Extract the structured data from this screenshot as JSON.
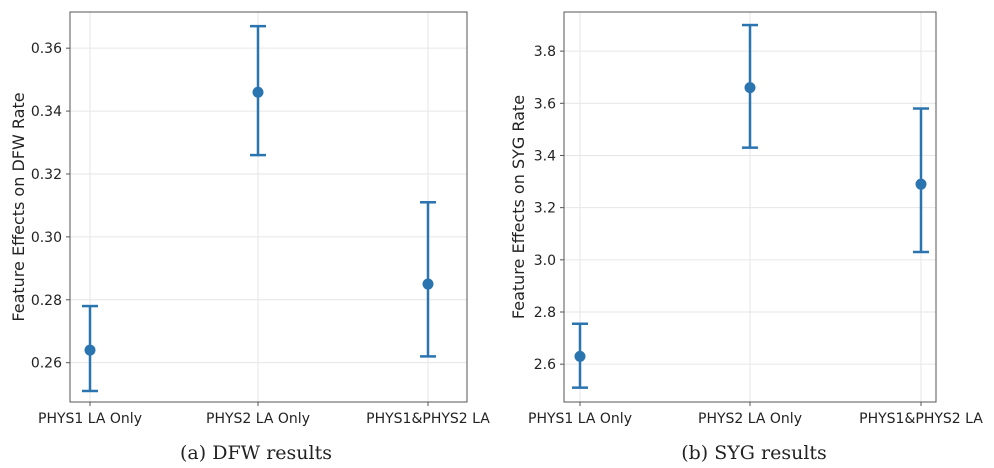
{
  "chart_data": [
    {
      "type": "scatter",
      "style": "errorbar",
      "categories": [
        "PHYS1 LA Only",
        "PHYS2 LA Only",
        "PHYS1&PHYS2 LA"
      ],
      "values": [
        0.264,
        0.346,
        0.285
      ],
      "lower": [
        0.251,
        0.326,
        0.262
      ],
      "upper": [
        0.278,
        0.367,
        0.311
      ],
      "ylabel": "Feature Effects on DFW Rate",
      "ylim": [
        0.2475,
        0.3715
      ],
      "yticks": [
        0.26,
        0.28,
        0.3,
        0.32,
        0.34,
        0.36
      ],
      "ytick_labels": [
        "0.26",
        "0.28",
        "0.30",
        "0.32",
        "0.34",
        "0.36"
      ],
      "grid": true,
      "color": "#2a74b0",
      "caption": "(a) DFW results"
    },
    {
      "type": "scatter",
      "style": "errorbar",
      "categories": [
        "PHYS1 LA Only",
        "PHYS2 LA Only",
        "PHYS1&PHYS2 LA"
      ],
      "values": [
        2.63,
        3.66,
        3.29
      ],
      "lower": [
        2.51,
        3.43,
        3.03
      ],
      "upper": [
        2.755,
        3.9,
        3.58
      ],
      "ylabel": "Feature Effects on SYG Rate",
      "ylim": [
        2.455,
        3.95
      ],
      "yticks": [
        2.6,
        2.8,
        3.0,
        3.2,
        3.4,
        3.6,
        3.8
      ],
      "ytick_labels": [
        "2.6",
        "2.8",
        "3.0",
        "3.2",
        "3.4",
        "3.6",
        "3.8"
      ],
      "grid": true,
      "color": "#2a74b0",
      "caption": "(b) SYG results"
    }
  ]
}
